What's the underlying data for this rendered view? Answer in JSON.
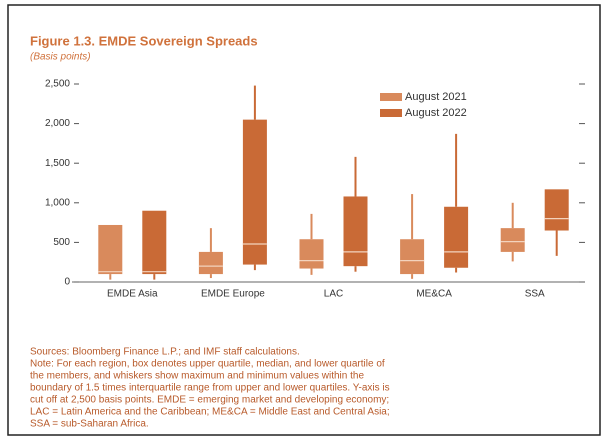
{
  "chart_data": {
    "type": "box",
    "title": "Figure 1.3. EMDE Sovereign Spreads",
    "subtitle": "(Basis points)",
    "categories": [
      "EMDE Asia",
      "EMDE Europe",
      "LAC",
      "ME&CA",
      "SSA"
    ],
    "series": [
      {
        "name": "August 2021",
        "color": "#d98a5c",
        "values": [
          {
            "min": 30,
            "q1": 100,
            "median": 130,
            "q3": 720,
            "max": 720
          },
          {
            "min": 50,
            "q1": 100,
            "median": 200,
            "q3": 380,
            "max": 680
          },
          {
            "min": 90,
            "q1": 170,
            "median": 270,
            "q3": 540,
            "max": 860
          },
          {
            "min": 40,
            "q1": 100,
            "median": 270,
            "q3": 540,
            "max": 1110
          },
          {
            "min": 260,
            "q1": 380,
            "median": 510,
            "q3": 680,
            "max": 1000
          }
        ]
      },
      {
        "name": "August 2022",
        "color": "#c96a36",
        "values": [
          {
            "min": 30,
            "q1": 100,
            "median": 130,
            "q3": 900,
            "max": 900
          },
          {
            "min": 150,
            "q1": 220,
            "median": 480,
            "q3": 2050,
            "max": 2480
          },
          {
            "min": 130,
            "q1": 200,
            "median": 380,
            "q3": 1080,
            "max": 1580
          },
          {
            "min": 120,
            "q1": 180,
            "median": 380,
            "q3": 950,
            "max": 1870
          },
          {
            "min": 330,
            "q1": 650,
            "median": 800,
            "q3": 1170,
            "max": 1170
          }
        ]
      }
    ],
    "ylim": [
      0,
      2500
    ],
    "yticks": [
      0,
      500,
      {
        "value": 1000,
        "label": "1,000"
      },
      {
        "value": 1500,
        "label": "1,500"
      },
      {
        "value": 2000,
        "label": "2,000"
      },
      {
        "value": 2500,
        "label": "2,500"
      }
    ],
    "notes": [
      "Sources: Bloomberg Finance L.P.; and IMF staff calculations.",
      "Note: For each region, box denotes upper quartile, median, and lower quartile of",
      "the members, and whiskers show maximum and minimum values within the",
      "boundary of 1.5 times interquartile range from upper and lower quartiles. Y-axis is",
      "cut off at 2,500 basis points. EMDE = emerging market and developing economy;",
      "LAC = Latin America and the Caribbean; ME&CA = Middle East and Central Asia;",
      "SSA = sub-Saharan Africa."
    ]
  }
}
